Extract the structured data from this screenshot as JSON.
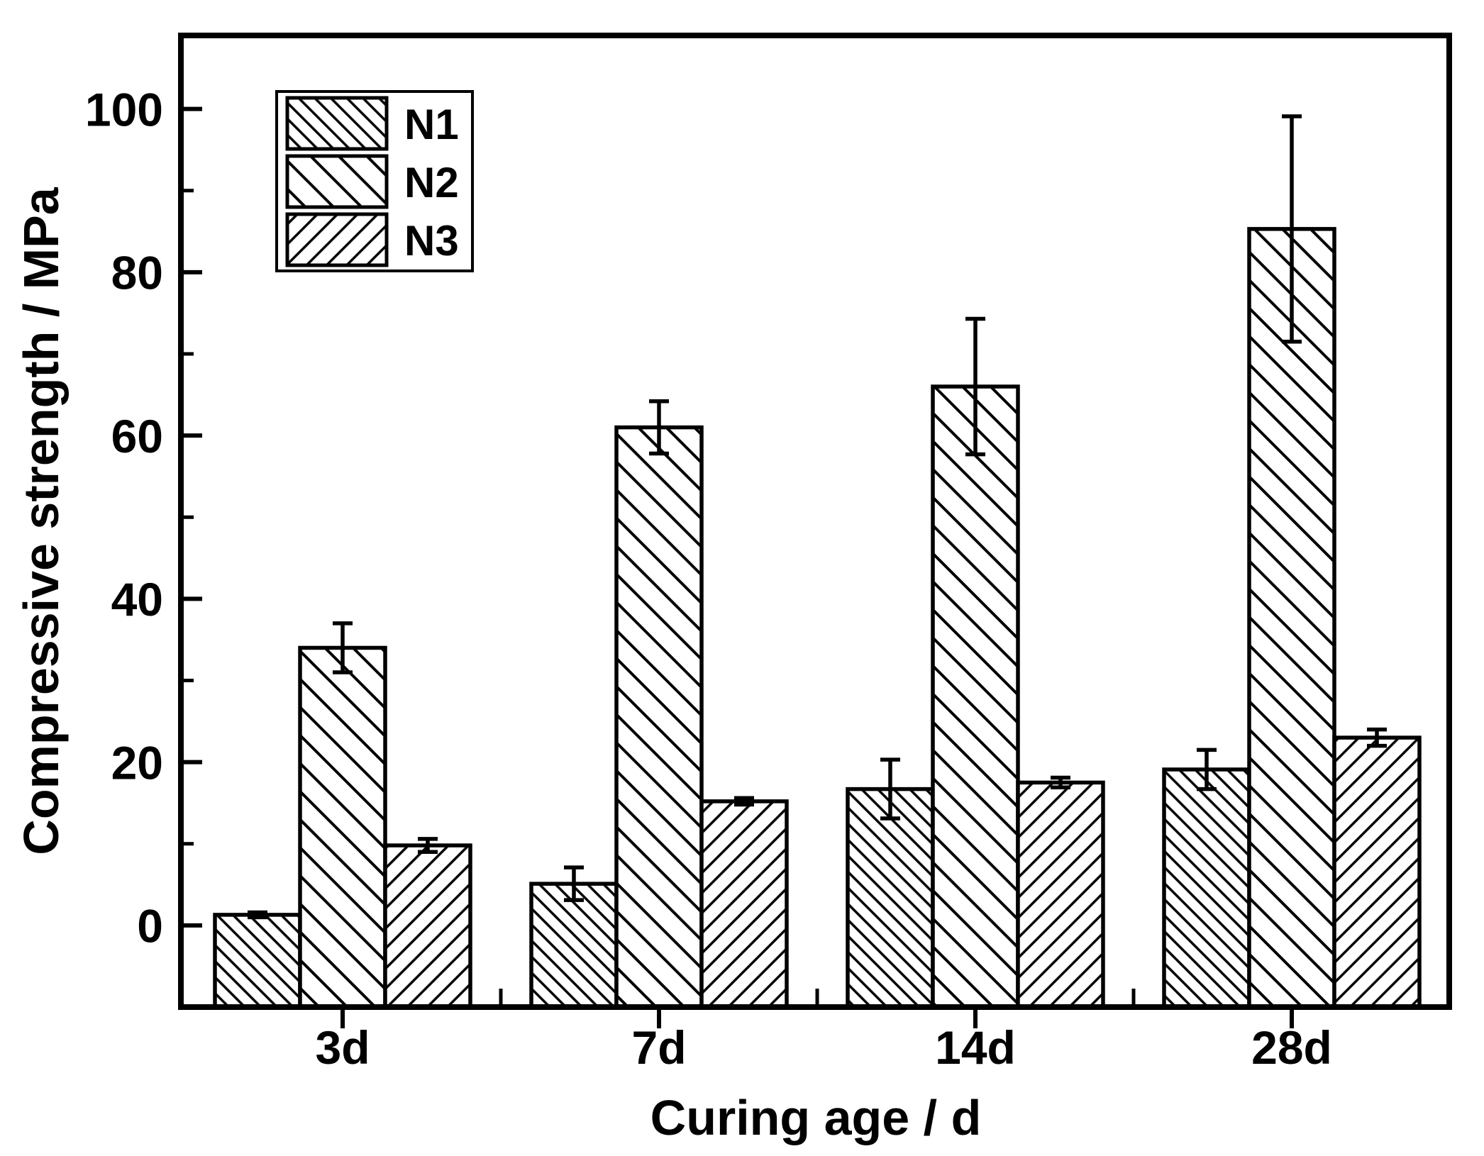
{
  "chart_data": {
    "type": "bar",
    "title": "",
    "xlabel": "Curing age / d",
    "ylabel": "Compressive strength / MPa",
    "categories": [
      "3d",
      "7d",
      "14d",
      "28d"
    ],
    "series": [
      {
        "name": "N1",
        "hatch": "forward-diagonal-dense",
        "values": [
          1.3,
          5.1,
          16.7,
          19.1
        ],
        "errors": [
          0.3,
          2.0,
          3.6,
          2.4
        ]
      },
      {
        "name": "N2",
        "hatch": "forward-diagonal-sparse",
        "values": [
          34.0,
          61.0,
          66.0,
          85.3
        ],
        "errors": [
          3.0,
          3.2,
          8.3,
          13.8
        ]
      },
      {
        "name": "N3",
        "hatch": "backward-diagonal",
        "values": [
          9.8,
          15.2,
          17.5,
          23.0
        ],
        "errors": [
          0.8,
          0.4,
          0.6,
          1.0
        ]
      }
    ],
    "y_ticks": [
      0,
      20,
      40,
      60,
      80,
      100
    ],
    "y_minor_ticks": [
      10,
      30,
      50,
      70,
      90
    ],
    "ylim": [
      -10,
      109
    ],
    "grid": false,
    "legend_position": "top-left",
    "bar_color": "#ffffff",
    "line_color": "#000000"
  }
}
